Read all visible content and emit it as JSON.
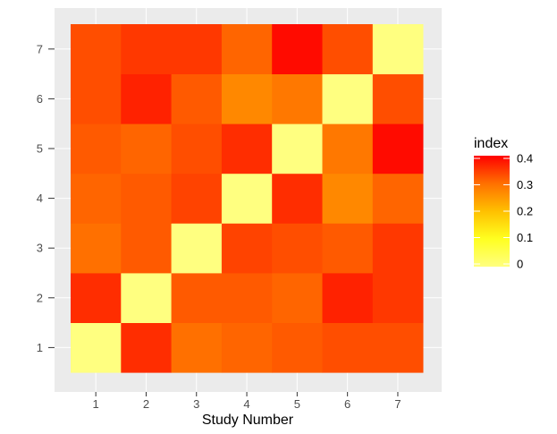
{
  "chart_data": {
    "type": "heatmap",
    "x_categories": [
      "1",
      "2",
      "3",
      "4",
      "5",
      "6",
      "7"
    ],
    "y_categories": [
      "1",
      "2",
      "3",
      "4",
      "5",
      "6",
      "7"
    ],
    "xlabel": "Study Number",
    "ylabel": "",
    "matrix": [
      [
        0,
        0.36,
        0.3,
        0.31,
        0.32,
        0.33,
        0.33
      ],
      [
        0.36,
        0,
        0.32,
        0.32,
        0.31,
        0.37,
        0.35
      ],
      [
        0.3,
        0.32,
        0,
        0.34,
        0.33,
        0.32,
        0.35
      ],
      [
        0.31,
        0.32,
        0.34,
        0,
        0.36,
        0.27,
        0.31
      ],
      [
        0.32,
        0.31,
        0.33,
        0.36,
        0,
        0.29,
        0.39
      ],
      [
        0.33,
        0.37,
        0.32,
        0.27,
        0.29,
        0,
        0.33
      ],
      [
        0.33,
        0.35,
        0.35,
        0.31,
        0.39,
        0.33,
        0
      ]
    ],
    "legend": {
      "title": "index",
      "ticks": [
        "0",
        "0.1",
        "0.2",
        "0.3",
        "0.4"
      ],
      "tick_values": [
        0,
        0.1,
        0.2,
        0.3,
        0.4
      ],
      "range": [
        0,
        0.4
      ],
      "placement": "right"
    },
    "colors": {
      "low": "#ffff80",
      "mid1": "#ffff00",
      "mid2": "#ff8000",
      "high": "#ff0000",
      "panel_background": "#ebebeb",
      "grid": "#ffffff"
    },
    "grid": true
  }
}
